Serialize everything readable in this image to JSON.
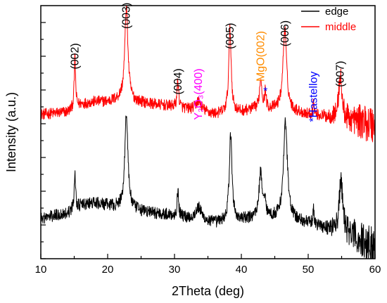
{
  "chart_data": {
    "type": "line",
    "title": "",
    "xlabel": "2Theta (deg)",
    "ylabel": "Intensity (a.u.)",
    "xlim": [
      10,
      60
    ],
    "xticks": [
      "10",
      "20",
      "30",
      "40",
      "50",
      "60"
    ],
    "y_tick_labels_shown": false,
    "ylim": [
      0,
      100
    ],
    "grid": false,
    "legend": {
      "placement": "top-right",
      "entries": [
        {
          "name": "edge",
          "color": "#000000"
        },
        {
          "name": "middle",
          "color": "#ff0000"
        }
      ]
    },
    "series": [
      {
        "name": "middle",
        "color": "#ff0000",
        "offset": 53,
        "baseline": [
          [
            10,
            4
          ],
          [
            14,
            5
          ],
          [
            16,
            8
          ],
          [
            18,
            9
          ],
          [
            20,
            9
          ],
          [
            22,
            10
          ],
          [
            24,
            9
          ],
          [
            27,
            8
          ],
          [
            30,
            7
          ],
          [
            32,
            6
          ],
          [
            34,
            5
          ],
          [
            36,
            4
          ],
          [
            40,
            5
          ],
          [
            42,
            6
          ],
          [
            44,
            6
          ],
          [
            46,
            6
          ],
          [
            48,
            5
          ],
          [
            50,
            4
          ],
          [
            53,
            3
          ],
          [
            56,
            2
          ],
          [
            58,
            1
          ],
          [
            60,
            0
          ]
        ],
        "peaks": [
          {
            "x": 15.1,
            "height": 20,
            "width": 0.12
          },
          {
            "x": 22.8,
            "height": 37,
            "width": 0.28
          },
          {
            "x": 30.5,
            "height": 11,
            "width": 0.14
          },
          {
            "x": 33.6,
            "height": 4,
            "width": 0.5
          },
          {
            "x": 38.3,
            "height": 33,
            "width": 0.22
          },
          {
            "x": 42.9,
            "height": 12,
            "width": 0.22
          },
          {
            "x": 43.6,
            "height": 7,
            "width": 0.12
          },
          {
            "x": 46.5,
            "height": 32,
            "width": 0.32
          },
          {
            "x": 50.8,
            "height": 6,
            "width": 0.1
          },
          {
            "x": 54.8,
            "height": 17,
            "width": 0.28
          }
        ],
        "noise": 2.2
      },
      {
        "name": "edge",
        "color": "#000000",
        "offset": 10,
        "baseline": [
          [
            10,
            6
          ],
          [
            14,
            8
          ],
          [
            16,
            11
          ],
          [
            18,
            12
          ],
          [
            20,
            11
          ],
          [
            22,
            10
          ],
          [
            24,
            9
          ],
          [
            27,
            8
          ],
          [
            30,
            7
          ],
          [
            32,
            6
          ],
          [
            34,
            5
          ],
          [
            36,
            4
          ],
          [
            40,
            5
          ],
          [
            42,
            6
          ],
          [
            44,
            6
          ],
          [
            46,
            6
          ],
          [
            48,
            5
          ],
          [
            50,
            4
          ],
          [
            53,
            2
          ],
          [
            56,
            0
          ],
          [
            58,
            -3
          ],
          [
            60,
            -6
          ]
        ],
        "peaks": [
          {
            "x": 15.1,
            "height": 15,
            "width": 0.12
          },
          {
            "x": 22.8,
            "height": 38,
            "width": 0.28
          },
          {
            "x": 30.5,
            "height": 10,
            "width": 0.14
          },
          {
            "x": 33.6,
            "height": 5,
            "width": 0.5
          },
          {
            "x": 38.4,
            "height": 34,
            "width": 0.25
          },
          {
            "x": 42.9,
            "height": 18,
            "width": 0.3
          },
          {
            "x": 43.6,
            "height": 6,
            "width": 0.14
          },
          {
            "x": 46.6,
            "height": 38,
            "width": 0.35
          },
          {
            "x": 50.8,
            "height": 6,
            "width": 0.1
          },
          {
            "x": 54.9,
            "height": 21,
            "width": 0.28
          }
        ],
        "noise": 2.4
      }
    ],
    "annotations": [
      {
        "text": "(002)",
        "x": 15.1,
        "y": 80,
        "color": "#000000"
      },
      {
        "text": "(003)",
        "x": 22.8,
        "y": 96,
        "color": "#000000"
      },
      {
        "text": "(004)",
        "x": 30.5,
        "y": 70,
        "color": "#000000"
      },
      {
        "text": "Y₂O₃(400)",
        "x": 33.6,
        "y": 65,
        "color": "#ff00ff"
      },
      {
        "text": "(005)",
        "x": 38.3,
        "y": 88,
        "color": "#000000"
      },
      {
        "text": "MgO(002)",
        "x": 42.9,
        "y": 80,
        "color": "#ff8c00"
      },
      {
        "text": "*",
        "x": 43.6,
        "y": 68,
        "color": "#0000ff"
      },
      {
        "text": "(006)",
        "x": 46.5,
        "y": 89,
        "color": "#000000"
      },
      {
        "text": "*Hastelloy",
        "x": 50.8,
        "y": 64,
        "color": "#0000ff"
      },
      {
        "text": "(007)",
        "x": 54.8,
        "y": 73,
        "color": "#000000"
      }
    ]
  }
}
